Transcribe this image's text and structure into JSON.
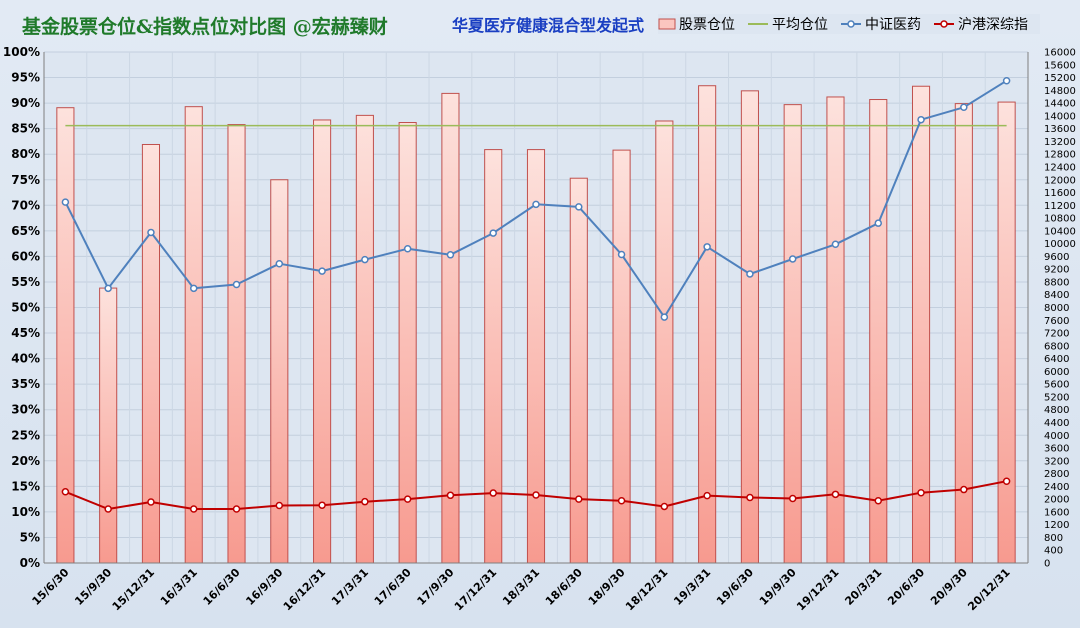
{
  "header": {
    "title_left": "基金股票仓位&指数点位对比图   @宏赫臻财",
    "title_right": "华夏医疗健康混合型发起式"
  },
  "colors": {
    "bar_fill_top": "#fde2dd",
    "bar_fill_bottom": "#f79a8f",
    "bar_stroke": "#c0504d",
    "avg_line": "#9bbb59",
    "index1_line": "#4f81bd",
    "index2_line": "#c00000"
  },
  "chart_data": {
    "type": "bar",
    "categories": [
      "15/6/30",
      "15/9/30",
      "15/12/31",
      "16/3/31",
      "16/6/30",
      "16/9/30",
      "16/12/31",
      "17/3/31",
      "17/6/30",
      "17/9/30",
      "17/12/31",
      "18/3/31",
      "18/6/30",
      "18/9/30",
      "18/12/31",
      "19/3/31",
      "19/6/30",
      "19/9/30",
      "19/12/31",
      "20/3/31",
      "20/6/30",
      "20/9/30",
      "20/12/31"
    ],
    "series": [
      {
        "name": "股票仓位",
        "type": "bar",
        "axis": "left",
        "values": [
          89.1,
          53.8,
          81.9,
          89.3,
          85.8,
          75.0,
          86.7,
          87.6,
          86.2,
          91.9,
          80.9,
          80.9,
          75.3,
          80.8,
          86.5,
          93.4,
          92.4,
          89.7,
          91.2,
          90.7,
          93.3,
          89.9,
          90.2
        ]
      },
      {
        "name": "平均仓位",
        "type": "line",
        "axis": "left",
        "values": [
          85.6,
          85.6,
          85.6,
          85.6,
          85.6,
          85.6,
          85.6,
          85.6,
          85.6,
          85.6,
          85.6,
          85.6,
          85.6,
          85.6,
          85.6,
          85.6,
          85.6,
          85.6,
          85.6,
          85.6,
          85.6,
          85.6,
          85.6
        ]
      },
      {
        "name": "中证医药",
        "type": "line",
        "axis": "right",
        "values": [
          11300,
          8600,
          10350,
          8600,
          8720,
          9370,
          9140,
          9500,
          9840,
          9650,
          10330,
          11230,
          11150,
          9660,
          7700,
          9900,
          9050,
          9520,
          9980,
          10640,
          13880,
          14270,
          15100
        ]
      },
      {
        "name": "沪港深综指",
        "type": "line",
        "axis": "right",
        "values": [
          2230,
          1690,
          1910,
          1690,
          1690,
          1800,
          1810,
          1920,
          2000,
          2120,
          2190,
          2130,
          2000,
          1950,
          1770,
          2110,
          2050,
          2020,
          2150,
          1950,
          2200,
          2300,
          2560
        ]
      }
    ],
    "y_left": {
      "min": 0,
      "max": 100,
      "step": 5,
      "format": "percent"
    },
    "y_right": {
      "min": 0,
      "max": 16000,
      "step": 400
    },
    "grid": true,
    "legend_position": "top-right"
  }
}
